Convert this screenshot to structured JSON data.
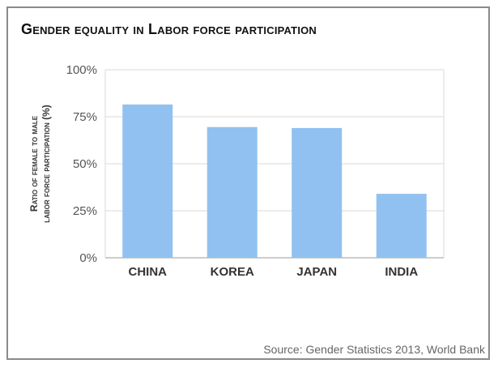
{
  "chart_data": {
    "type": "bar",
    "title": "Gender equality in Labor force participation",
    "ylabel_lines": [
      "Ratio of female to male",
      "labor force participation (%)"
    ],
    "categories": [
      "CHINA",
      "KOREA",
      "JAPAN",
      "INDIA"
    ],
    "values": [
      81.5,
      69.5,
      69,
      34
    ],
    "ylim": [
      0,
      100
    ],
    "yticks": [
      "0%",
      "25%",
      "50%",
      "75%",
      "100%"
    ],
    "ytick_values": [
      0,
      25,
      50,
      75,
      100
    ],
    "grid": true,
    "bar_color": "#91c1f0",
    "grid_color": "#d8d8d8"
  },
  "source": "Source: Gender Statistics 2013, World Bank"
}
